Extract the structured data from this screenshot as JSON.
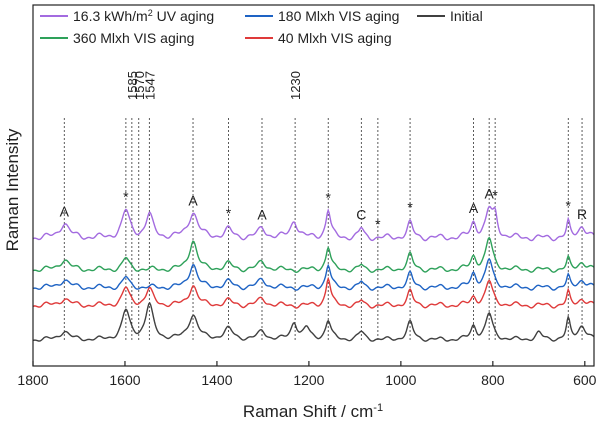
{
  "chart_data": {
    "type": "line",
    "xlabel_main": "Raman Shift / cm",
    "xlabel_sup": "-1",
    "ylabel": "Raman Intensity",
    "xlim": [
      1800,
      580
    ],
    "x_reversed": true,
    "x_ticks": [
      1800,
      1600,
      1400,
      1200,
      1000,
      800,
      600
    ],
    "y_ticks_shown": false,
    "grid": false,
    "legend": {
      "placement": "top",
      "entries": [
        {
          "label_main": "16.3 kWh/m",
          "label_sup": "2",
          "label_rest": " UV aging",
          "color": "#a36be0"
        },
        {
          "label_main": "180 Mlxh VIS aging",
          "label_sup": "",
          "label_rest": "",
          "color": "#1e63c4"
        },
        {
          "label_main": "Initial",
          "label_sup": "",
          "label_rest": "",
          "color": "#404040"
        },
        {
          "label_main": "360 Mlxh VIS aging",
          "label_sup": "",
          "label_rest": "",
          "color": "#2ea15a"
        },
        {
          "label_main": "40 Mlxh VIS aging",
          "label_sup": "",
          "label_rest": "",
          "color": "#df3a3a"
        }
      ]
    },
    "series": [
      {
        "key": "uv",
        "color": "#a36be0",
        "offset": 4.0,
        "scale": 1.05,
        "peaks": [
          [
            1732,
            0.55,
            12
          ],
          [
            1598,
            1.0,
            10
          ],
          [
            1547,
            0.85,
            9
          ],
          [
            1452,
            0.95,
            12
          ],
          [
            1375,
            0.3,
            10
          ],
          [
            1302,
            0.35,
            10
          ],
          [
            1232,
            0.65,
            9
          ],
          [
            1158,
            1.05,
            6
          ],
          [
            1086,
            0.35,
            6
          ],
          [
            980,
            0.55,
            7
          ],
          [
            842,
            0.55,
            7
          ],
          [
            808,
            1.0,
            9
          ],
          [
            795,
            0.7,
            6
          ],
          [
            636,
            0.55,
            4
          ],
          [
            606,
            0.45,
            10
          ]
        ]
      },
      {
        "key": "green",
        "color": "#2ea15a",
        "offset": 2.75,
        "scale": 0.9,
        "peaks": [
          [
            1732,
            0.45,
            12
          ],
          [
            1598,
            0.5,
            8
          ],
          [
            1452,
            1.3,
            10
          ],
          [
            1375,
            0.25,
            10
          ],
          [
            1302,
            0.35,
            10
          ],
          [
            1158,
            1.0,
            6
          ],
          [
            1086,
            0.2,
            5
          ],
          [
            980,
            0.65,
            7
          ],
          [
            842,
            0.55,
            7
          ],
          [
            808,
            1.35,
            9
          ],
          [
            636,
            0.45,
            4
          ],
          [
            606,
            0.35,
            10
          ]
        ]
      },
      {
        "key": "blue",
        "color": "#1e63c4",
        "offset": 2.05,
        "scale": 0.9,
        "peaks": [
          [
            1732,
            0.35,
            12
          ],
          [
            1598,
            0.45,
            8
          ],
          [
            1452,
            1.05,
            10
          ],
          [
            1375,
            0.25,
            10
          ],
          [
            1302,
            0.35,
            10
          ],
          [
            1158,
            1.0,
            6
          ],
          [
            1086,
            0.25,
            5
          ],
          [
            980,
            0.6,
            7
          ],
          [
            842,
            0.6,
            7
          ],
          [
            808,
            1.2,
            9
          ],
          [
            636,
            0.45,
            4
          ],
          [
            606,
            0.35,
            10
          ]
        ]
      },
      {
        "key": "red",
        "color": "#df3a3a",
        "offset": 1.35,
        "scale": 0.9,
        "peaks": [
          [
            1732,
            0.3,
            12
          ],
          [
            1598,
            0.75,
            9
          ],
          [
            1547,
            0.7,
            9
          ],
          [
            1452,
            0.9,
            10
          ],
          [
            1375,
            0.2,
            10
          ],
          [
            1302,
            0.3,
            10
          ],
          [
            1158,
            1.2,
            6
          ],
          [
            1086,
            0.2,
            5
          ],
          [
            980,
            0.6,
            7
          ],
          [
            842,
            0.35,
            7
          ],
          [
            808,
            1.05,
            9
          ],
          [
            636,
            0.55,
            4
          ],
          [
            606,
            0.3,
            10
          ]
        ]
      },
      {
        "key": "initial",
        "color": "#404040",
        "offset": 0.0,
        "scale": 0.75,
        "peaks": [
          [
            1732,
            0.45,
            12
          ],
          [
            1598,
            1.5,
            10
          ],
          [
            1547,
            1.8,
            10
          ],
          [
            1452,
            1.3,
            12
          ],
          [
            1375,
            0.55,
            12
          ],
          [
            1302,
            0.45,
            10
          ],
          [
            1232,
            0.9,
            8
          ],
          [
            1205,
            0.6,
            8
          ],
          [
            1158,
            1.0,
            7
          ],
          [
            1086,
            0.4,
            8
          ],
          [
            980,
            0.9,
            8
          ],
          [
            842,
            0.7,
            7
          ],
          [
            808,
            1.35,
            9
          ],
          [
            700,
            0.35,
            8
          ],
          [
            636,
            1.0,
            5
          ],
          [
            606,
            0.75,
            10
          ]
        ]
      }
    ],
    "marker_lines": [
      {
        "x": 1732,
        "label": "A"
      },
      {
        "x": 1598,
        "label": "*"
      },
      {
        "x": 1585,
        "label": "1585"
      },
      {
        "x": 1570,
        "label": "1570"
      },
      {
        "x": 1547,
        "label": "1547"
      },
      {
        "x": 1452,
        "label": "A"
      },
      {
        "x": 1375,
        "label": "*"
      },
      {
        "x": 1302,
        "label": "A"
      },
      {
        "x": 1230,
        "label": "1230"
      },
      {
        "x": 1158,
        "label": "*"
      },
      {
        "x": 1086,
        "label": "C"
      },
      {
        "x": 1050,
        "label": "*"
      },
      {
        "x": 980,
        "label": "*"
      },
      {
        "x": 842,
        "label": "A"
      },
      {
        "x": 808,
        "label": "A"
      },
      {
        "x": 795,
        "label": "*"
      },
      {
        "x": 636,
        "label": "*"
      },
      {
        "x": 606,
        "label": "R"
      }
    ]
  }
}
